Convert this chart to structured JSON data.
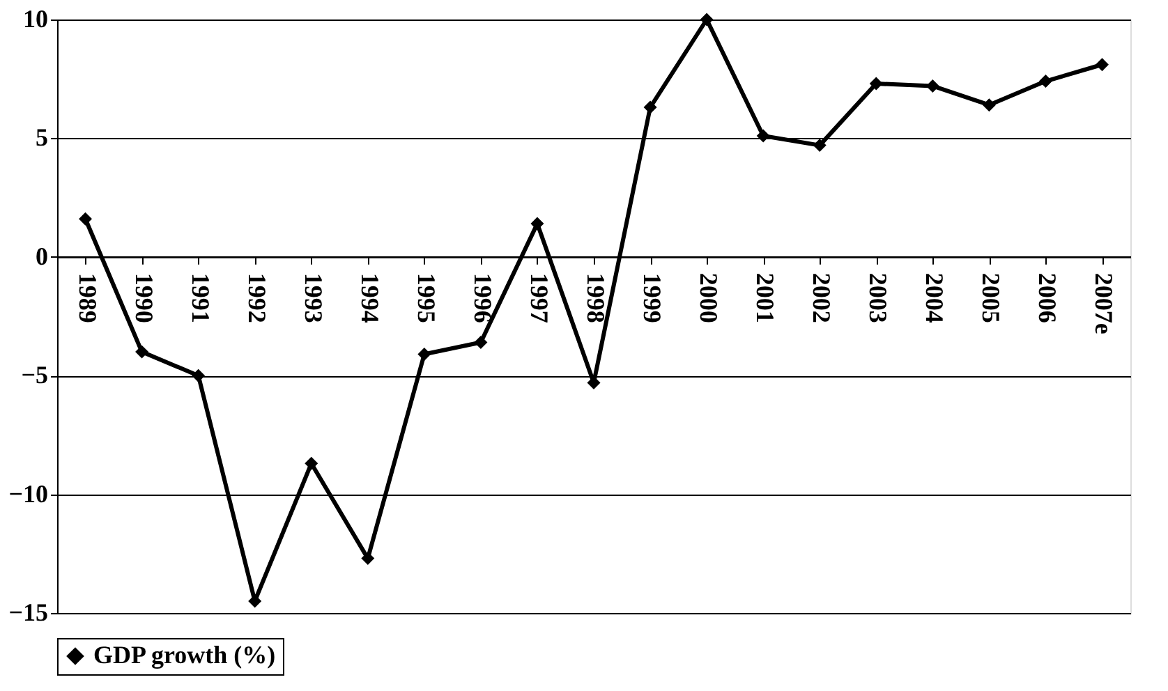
{
  "chart_data": {
    "type": "line",
    "categories": [
      "1989",
      "1990",
      "1991",
      "1992",
      "1993",
      "1994",
      "1995",
      "1996",
      "1997",
      "1998",
      "1999",
      "2000",
      "2001",
      "2002",
      "2003",
      "2004",
      "2005",
      "2006",
      "2007e"
    ],
    "series": [
      {
        "name": "GDP growth (%)",
        "color": "#000000",
        "values": [
          1.6,
          -4.0,
          -5.0,
          -14.5,
          -8.7,
          -12.7,
          -4.1,
          -3.6,
          1.4,
          -5.3,
          6.3,
          10.0,
          5.1,
          4.7,
          7.3,
          7.2,
          6.4,
          7.4,
          8.1
        ]
      }
    ],
    "ylim": [
      -15,
      10
    ],
    "yticks": [
      -15,
      -10,
      -5,
      0,
      5,
      10
    ],
    "grid": "y",
    "legend": "bottom",
    "marker": "diamond",
    "line_style": "solid"
  }
}
